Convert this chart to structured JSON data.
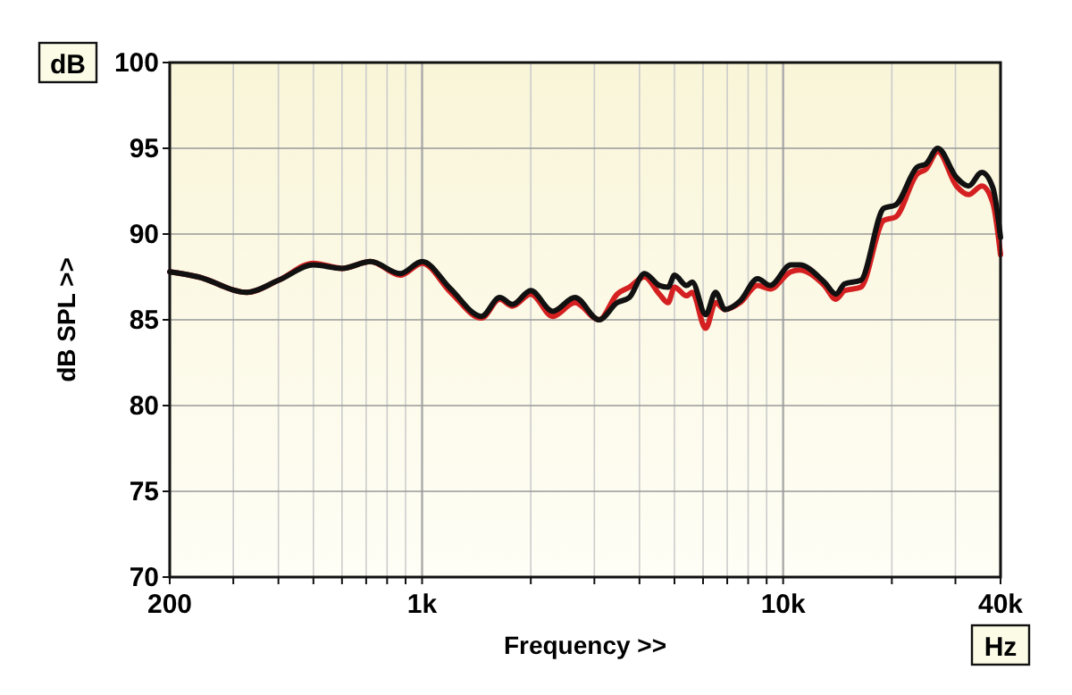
{
  "chart_data": {
    "type": "line",
    "xlabel": "Frequency >>",
    "ylabel": "dB SPL >>",
    "annotations": [
      "dB",
      "Hz"
    ],
    "log": "x",
    "grid": true,
    "marker": "none",
    "line_style": "solid",
    "xlim": [
      200,
      40000
    ],
    "ylim": [
      70,
      100
    ],
    "xticks": [
      200,
      {
        "value": 300,
        "label": null
      },
      {
        "value": 400,
        "label": null
      },
      {
        "value": 500,
        "label": null
      },
      {
        "value": 600,
        "label": null
      },
      {
        "value": 700,
        "label": null
      },
      {
        "value": 800,
        "label": null
      },
      {
        "value": 900,
        "label": null
      },
      {
        "value": 1000,
        "label": "1k"
      },
      {
        "value": 2000,
        "label": null
      },
      {
        "value": 3000,
        "label": null
      },
      {
        "value": 4000,
        "label": null
      },
      {
        "value": 5000,
        "label": null
      },
      {
        "value": 6000,
        "label": null
      },
      {
        "value": 7000,
        "label": null
      },
      {
        "value": 8000,
        "label": null
      },
      {
        "value": 9000,
        "label": null
      },
      {
        "value": 10000,
        "label": "10k"
      },
      {
        "value": 20000,
        "label": null
      },
      {
        "value": 30000,
        "label": null
      },
      {
        "value": 40000,
        "label": "40k"
      }
    ],
    "yticks": [
      70,
      75,
      80,
      85,
      90,
      95,
      100
    ],
    "x": [
      200,
      240,
      327,
      400,
      500,
      600,
      720,
      870,
      1000,
      1200,
      1460,
      1640,
      1780,
      2000,
      2300,
      2650,
      3090,
      3470,
      3750,
      4130,
      4540,
      4800,
      5000,
      5400,
      5600,
      6100,
      6500,
      6900,
      7600,
      8500,
      9200,
      10500,
      11100,
      13000,
      14000,
      14800,
      16400,
      19000,
      20500,
      23500,
      24900,
      26800,
      30200,
      32600,
      35500,
      38100,
      40000
    ],
    "series": [
      {
        "color": "#d42020",
        "values": [
          87.8,
          87.5,
          86.6,
          87.3,
          88.3,
          88.0,
          88.4,
          87.6,
          88.3,
          86.6,
          85.1,
          86.2,
          85.8,
          86.5,
          85.2,
          86.0,
          85.0,
          86.5,
          86.9,
          87.5,
          86.5,
          86.0,
          86.9,
          86.4,
          86.6,
          84.5,
          86.0,
          85.6,
          86.0,
          87.0,
          86.8,
          87.8,
          87.9,
          87.0,
          86.2,
          86.7,
          86.9,
          90.8,
          91.0,
          93.5,
          93.8,
          94.8,
          92.8,
          92.3,
          92.8,
          91.8,
          88.8
        ]
      },
      {
        "color": "#111111",
        "values": [
          87.8,
          87.5,
          86.6,
          87.3,
          88.2,
          88.0,
          88.4,
          87.7,
          88.4,
          86.8,
          85.2,
          86.3,
          85.9,
          86.7,
          85.5,
          86.3,
          85.0,
          86.0,
          86.3,
          87.7,
          87.0,
          86.9,
          87.6,
          87.0,
          87.2,
          85.3,
          86.6,
          85.6,
          86.1,
          87.4,
          87.0,
          88.2,
          88.2,
          87.2,
          86.5,
          87.1,
          87.3,
          91.5,
          91.7,
          93.9,
          94.1,
          95.0,
          93.3,
          92.8,
          93.6,
          92.7,
          89.8
        ]
      }
    ]
  }
}
